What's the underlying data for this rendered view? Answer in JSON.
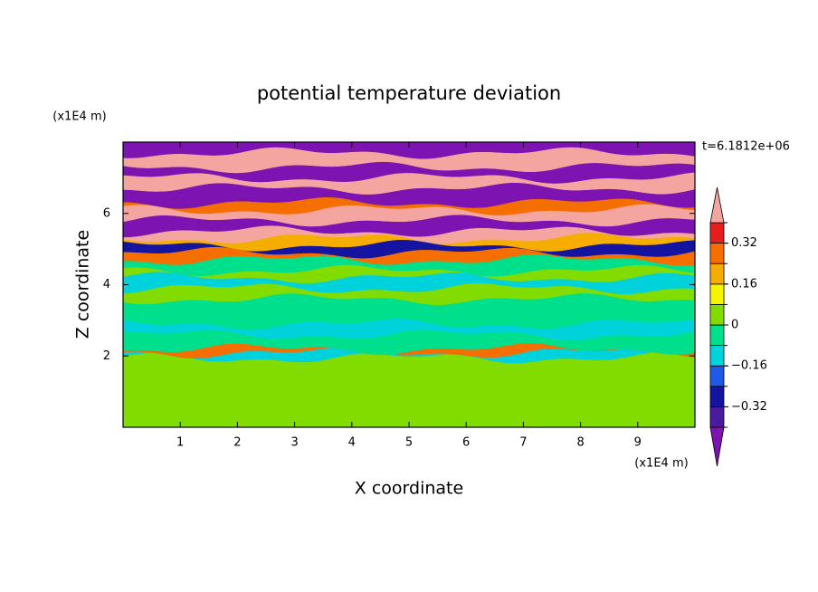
{
  "chart_data": {
    "type": "contour",
    "title": "potential temperature deviation",
    "xlabel": "X coordinate",
    "ylabel": "Z coordinate",
    "x_unit": "(x1E4 m)",
    "y_unit": "(x1E4 m)",
    "time_label": "t=6.1812e+06",
    "xlim": [
      0,
      10
    ],
    "ylim": [
      0,
      8
    ],
    "xticks": [
      1,
      2,
      3,
      4,
      5,
      6,
      7,
      8,
      9
    ],
    "yticks": [
      2,
      4,
      6
    ],
    "field": {
      "z": [
        0,
        1.95,
        2.1,
        2.2,
        2.6,
        2.9,
        3.6,
        3.9,
        4.2,
        4.4,
        4.7,
        4.9,
        5.1,
        5.3,
        5.5,
        5.8,
        6.1,
        6.3,
        6.7,
        7.0,
        7.3,
        7.7,
        8.0
      ],
      "values": [
        0.04,
        -0.12,
        0.28,
        -0.04,
        -0.12,
        -0.04,
        0.04,
        -0.12,
        0.04,
        -0.04,
        0.28,
        -0.28,
        0.2,
        0.45,
        -0.45,
        0.45,
        0.28,
        -0.45,
        0.45,
        -0.45,
        0.45,
        -0.45
      ]
    },
    "colorbar": {
      "levels": [
        -0.4,
        -0.32,
        -0.24,
        -0.16,
        -0.08,
        0,
        0.08,
        0.16,
        0.24,
        0.32,
        0.4
      ],
      "colors": [
        "#7d13b0",
        "#4a1b9c",
        "#1414a0",
        "#1e5ae6",
        "#00d2dc",
        "#00e08c",
        "#82dc00",
        "#f5f500",
        "#f5ae00",
        "#f56e00",
        "#e61e1e",
        "#f5a5a0"
      ],
      "ticks": [
        {
          "value": -0.32,
          "label": "−0.32"
        },
        {
          "value": -0.16,
          "label": "−0.16"
        },
        0,
        0.16,
        0.32
      ]
    }
  }
}
